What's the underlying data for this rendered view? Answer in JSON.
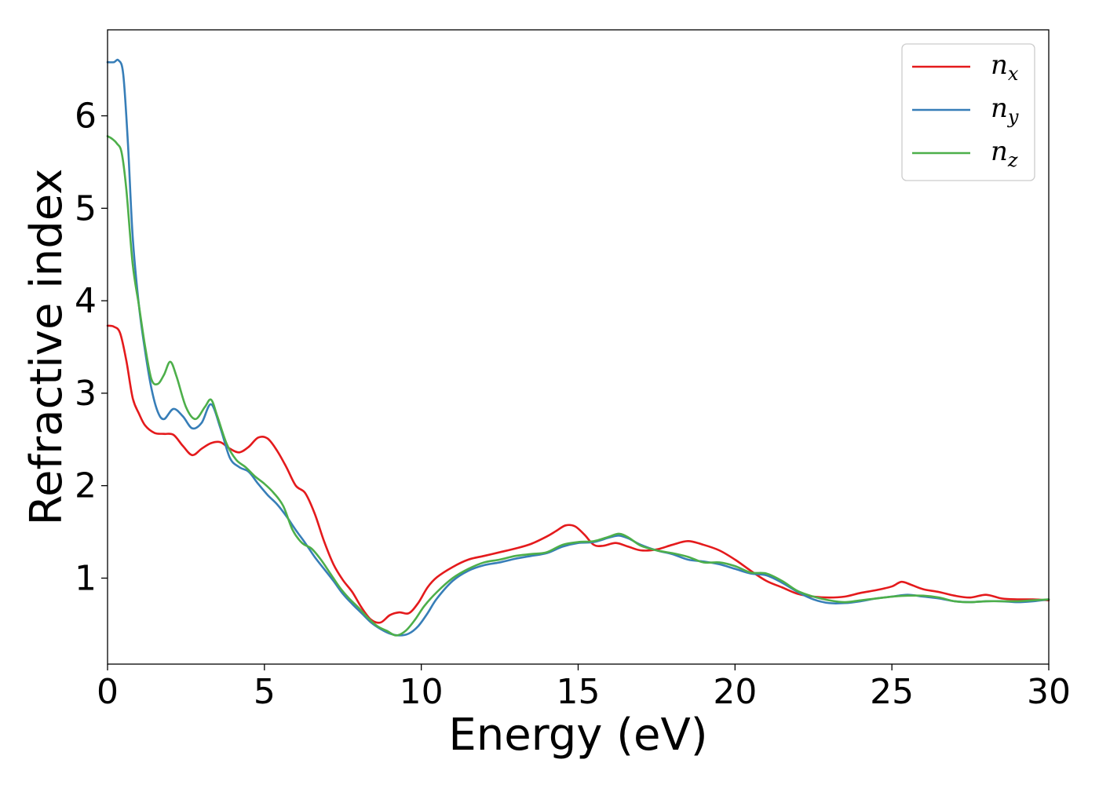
{
  "chart_data": {
    "type": "line",
    "xlabel": "Energy (eV)",
    "ylabel": "Refractive index",
    "xlim": [
      0,
      30
    ],
    "ylim": [
      0.07,
      6.93
    ],
    "x_ticks": [
      "0",
      "5",
      "10",
      "15",
      "20",
      "25",
      "30"
    ],
    "y_ticks": [
      "1",
      "2",
      "3",
      "4",
      "5",
      "6"
    ],
    "grid": false,
    "legend_position": "top-right",
    "series": [
      {
        "name": "n_x",
        "label_base": "n",
        "label_sub": "x",
        "color": "#e41a1c",
        "x": [
          0,
          0.2,
          0.4,
          0.6,
          0.8,
          1.0,
          1.2,
          1.5,
          1.8,
          2.1,
          2.4,
          2.7,
          3.0,
          3.3,
          3.6,
          3.9,
          4.2,
          4.5,
          4.8,
          5.1,
          5.4,
          5.7,
          6.0,
          6.3,
          6.6,
          6.9,
          7.2,
          7.5,
          7.8,
          8.1,
          8.4,
          8.7,
          9.0,
          9.3,
          9.6,
          9.9,
          10.2,
          10.5,
          11.0,
          11.5,
          12.0,
          12.5,
          13.0,
          13.5,
          14.0,
          14.3,
          14.6,
          14.9,
          15.2,
          15.5,
          15.8,
          16.2,
          16.6,
          17.0,
          17.5,
          18.0,
          18.5,
          19.0,
          19.5,
          20.0,
          20.5,
          21.0,
          21.5,
          22.0,
          22.5,
          23.0,
          23.5,
          24.0,
          24.5,
          25.0,
          25.3,
          25.6,
          26.0,
          26.5,
          27.0,
          27.5,
          28.0,
          28.5,
          29.0,
          29.5,
          30.0
        ],
        "y": [
          3.73,
          3.72,
          3.65,
          3.35,
          2.95,
          2.78,
          2.65,
          2.57,
          2.56,
          2.55,
          2.43,
          2.33,
          2.4,
          2.46,
          2.47,
          2.4,
          2.36,
          2.42,
          2.52,
          2.51,
          2.38,
          2.2,
          2.0,
          1.92,
          1.7,
          1.4,
          1.15,
          0.98,
          0.85,
          0.68,
          0.55,
          0.52,
          0.6,
          0.63,
          0.62,
          0.73,
          0.9,
          1.01,
          1.12,
          1.2,
          1.24,
          1.28,
          1.32,
          1.37,
          1.45,
          1.51,
          1.57,
          1.56,
          1.47,
          1.36,
          1.35,
          1.38,
          1.34,
          1.3,
          1.31,
          1.36,
          1.4,
          1.36,
          1.3,
          1.2,
          1.08,
          0.97,
          0.9,
          0.83,
          0.8,
          0.79,
          0.8,
          0.84,
          0.87,
          0.91,
          0.96,
          0.93,
          0.88,
          0.85,
          0.81,
          0.79,
          0.82,
          0.78,
          0.77,
          0.77,
          0.76
        ]
      },
      {
        "name": "n_y",
        "label_base": "n",
        "label_sub": "y",
        "color": "#377eb8",
        "x": [
          0,
          0.2,
          0.35,
          0.5,
          0.65,
          0.8,
          1.0,
          1.2,
          1.4,
          1.6,
          1.8,
          2.1,
          2.4,
          2.7,
          3.0,
          3.3,
          3.6,
          3.9,
          4.2,
          4.5,
          4.8,
          5.1,
          5.4,
          5.7,
          6.0,
          6.3,
          6.6,
          6.9,
          7.2,
          7.5,
          7.8,
          8.1,
          8.4,
          8.7,
          9.0,
          9.3,
          9.6,
          9.9,
          10.2,
          10.5,
          11.0,
          11.5,
          12.0,
          12.5,
          13.0,
          13.5,
          14.0,
          14.5,
          15.0,
          15.5,
          16.0,
          16.3,
          16.6,
          17.0,
          17.5,
          18.0,
          18.5,
          19.0,
          19.5,
          20.0,
          20.5,
          21.0,
          21.5,
          22.0,
          22.5,
          23.0,
          23.5,
          24.0,
          24.5,
          25.0,
          25.5,
          26.0,
          26.5,
          27.0,
          27.5,
          28.0,
          28.5,
          29.0,
          29.5,
          30.0
        ],
        "y": [
          6.58,
          6.58,
          6.6,
          6.45,
          5.7,
          4.7,
          3.95,
          3.45,
          3.05,
          2.8,
          2.72,
          2.83,
          2.75,
          2.62,
          2.68,
          2.88,
          2.62,
          2.3,
          2.2,
          2.15,
          2.02,
          1.9,
          1.8,
          1.67,
          1.52,
          1.38,
          1.23,
          1.1,
          0.97,
          0.83,
          0.72,
          0.62,
          0.52,
          0.45,
          0.4,
          0.38,
          0.4,
          0.48,
          0.62,
          0.78,
          0.97,
          1.08,
          1.14,
          1.17,
          1.21,
          1.24,
          1.27,
          1.34,
          1.38,
          1.39,
          1.44,
          1.46,
          1.43,
          1.36,
          1.3,
          1.26,
          1.2,
          1.18,
          1.15,
          1.1,
          1.05,
          1.03,
          0.95,
          0.85,
          0.77,
          0.73,
          0.73,
          0.75,
          0.78,
          0.8,
          0.82,
          0.8,
          0.78,
          0.75,
          0.74,
          0.75,
          0.75,
          0.74,
          0.75,
          0.77
        ]
      },
      {
        "name": "n_z",
        "label_base": "n",
        "label_sub": "z",
        "color": "#4daf4a",
        "x": [
          0,
          0.15,
          0.3,
          0.45,
          0.6,
          0.8,
          1.0,
          1.2,
          1.4,
          1.6,
          1.8,
          2.0,
          2.2,
          2.5,
          2.8,
          3.1,
          3.3,
          3.5,
          3.8,
          4.1,
          4.4,
          4.7,
          5.0,
          5.3,
          5.6,
          5.9,
          6.2,
          6.5,
          6.8,
          7.1,
          7.4,
          7.7,
          8.0,
          8.3,
          8.6,
          8.9,
          9.2,
          9.5,
          9.8,
          10.1,
          10.5,
          11.0,
          11.5,
          12.0,
          12.5,
          13.0,
          13.5,
          14.0,
          14.5,
          15.0,
          15.5,
          16.0,
          16.3,
          16.6,
          17.0,
          17.5,
          18.0,
          18.5,
          19.0,
          19.5,
          20.0,
          20.5,
          21.0,
          21.5,
          22.0,
          22.5,
          23.0,
          23.5,
          24.0,
          24.5,
          25.0,
          25.5,
          26.0,
          26.5,
          27.0,
          27.5,
          28.0,
          28.5,
          29.0,
          29.5,
          30.0
        ],
        "y": [
          5.78,
          5.75,
          5.7,
          5.6,
          5.2,
          4.4,
          3.95,
          3.5,
          3.15,
          3.1,
          3.2,
          3.34,
          3.18,
          2.85,
          2.72,
          2.85,
          2.93,
          2.75,
          2.45,
          2.28,
          2.2,
          2.1,
          2.02,
          1.92,
          1.78,
          1.52,
          1.38,
          1.32,
          1.2,
          1.05,
          0.9,
          0.78,
          0.68,
          0.57,
          0.48,
          0.43,
          0.38,
          0.43,
          0.55,
          0.7,
          0.85,
          1.0,
          1.1,
          1.17,
          1.2,
          1.24,
          1.26,
          1.28,
          1.36,
          1.39,
          1.4,
          1.45,
          1.48,
          1.44,
          1.35,
          1.3,
          1.27,
          1.23,
          1.17,
          1.17,
          1.13,
          1.06,
          1.05,
          0.97,
          0.86,
          0.8,
          0.76,
          0.74,
          0.76,
          0.78,
          0.8,
          0.81,
          0.81,
          0.79,
          0.75,
          0.74,
          0.75,
          0.75,
          0.75,
          0.76,
          0.77
        ]
      }
    ]
  }
}
